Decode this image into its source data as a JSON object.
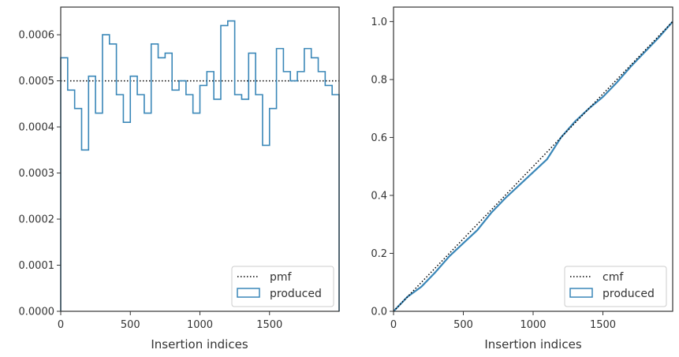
{
  "colors": {
    "produced": "#3a87b8",
    "reference": "#000000",
    "frame": "#333333",
    "legend_border": "#cccccc"
  },
  "chart_data": [
    {
      "type": "histogram-step",
      "xlabel": "Insertion indices",
      "ylabel": "",
      "xlim": [
        0,
        2000
      ],
      "ylim": [
        0,
        0.00066
      ],
      "x_ticks": [
        "0",
        "500",
        "1000",
        "1500"
      ],
      "x_tick_values": [
        0,
        500,
        1000,
        1500
      ],
      "y_ticks": [
        "0.0000",
        "0.0001",
        "0.0002",
        "0.0003",
        "0.0004",
        "0.0005",
        "0.0006"
      ],
      "y_tick_values": [
        0,
        0.0001,
        0.0002,
        0.0003,
        0.0004,
        0.0005,
        0.0006
      ],
      "bin_width": 50,
      "bin_edges_start": 0,
      "series": [
        {
          "name": "pmf",
          "style": "dotted",
          "values": [
            0.0005
          ]
        },
        {
          "name": "produced",
          "style": "step",
          "values": [
            0.00055,
            0.00048,
            0.00044,
            0.00035,
            0.00051,
            0.00043,
            0.0006,
            0.00058,
            0.00047,
            0.00041,
            0.00051,
            0.00047,
            0.00043,
            0.00058,
            0.00055,
            0.00056,
            0.00048,
            0.0005,
            0.00047,
            0.00043,
            0.00049,
            0.00052,
            0.00046,
            0.00062,
            0.00063,
            0.00047,
            0.00046,
            0.00056,
            0.00047,
            0.00036,
            0.00044,
            0.00057,
            0.00052,
            0.0005,
            0.00052,
            0.00057,
            0.00055,
            0.00052,
            0.00049,
            0.00047
          ]
        }
      ],
      "legend": {
        "position": "bottom-right",
        "entries": [
          "pmf",
          "produced"
        ]
      }
    },
    {
      "type": "line",
      "xlabel": "Insertion indices",
      "ylabel": "",
      "xlim": [
        0,
        2000
      ],
      "ylim": [
        0,
        1.05
      ],
      "x_ticks": [
        "0",
        "500",
        "1000",
        "1500"
      ],
      "x_tick_values": [
        0,
        500,
        1000,
        1500
      ],
      "y_ticks": [
        "0.0",
        "0.2",
        "0.4",
        "0.6",
        "0.8",
        "1.0"
      ],
      "y_tick_values": [
        0,
        0.2,
        0.4,
        0.6,
        0.8,
        1.0
      ],
      "series": [
        {
          "name": "cmf",
          "style": "dotted",
          "x": [
            0,
            2000
          ],
          "y": [
            0,
            1.0
          ]
        },
        {
          "name": "produced",
          "style": "solid",
          "x": [
            0,
            100,
            200,
            300,
            400,
            500,
            600,
            700,
            800,
            900,
            1000,
            1100,
            1200,
            1300,
            1400,
            1500,
            1600,
            1700,
            1800,
            1900,
            2000
          ],
          "y": [
            0,
            0.05,
            0.085,
            0.135,
            0.19,
            0.235,
            0.28,
            0.34,
            0.39,
            0.435,
            0.48,
            0.525,
            0.6,
            0.655,
            0.7,
            0.74,
            0.79,
            0.845,
            0.895,
            0.945,
            1.0
          ]
        }
      ],
      "legend": {
        "position": "bottom-right",
        "entries": [
          "cmf",
          "produced"
        ]
      }
    }
  ]
}
